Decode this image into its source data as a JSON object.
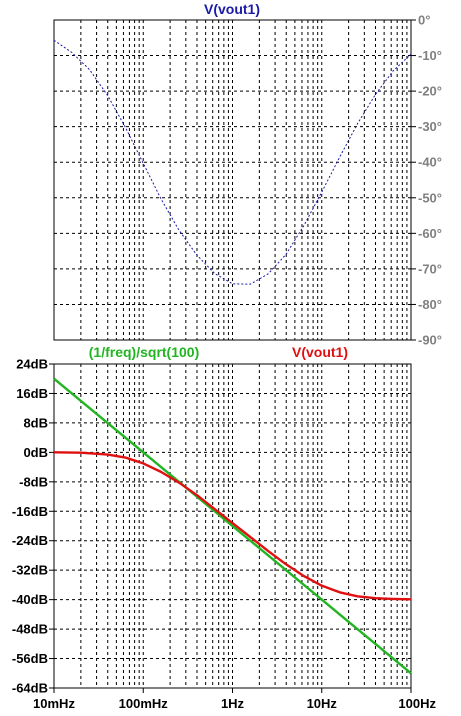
{
  "chart_data": [
    {
      "type": "line",
      "panel": "phase",
      "title": "V(vout1)",
      "title_color": "#1a1aa6",
      "x_scale": "log",
      "xlim": [
        0.01,
        100
      ],
      "ylim": [
        -90,
        0
      ],
      "y_ticks": [
        0,
        -10,
        -20,
        -30,
        -40,
        -50,
        -60,
        -70,
        -80,
        -90
      ],
      "y_tick_labels": [
        "0°",
        "-10°",
        "-20°",
        "-30°",
        "-40°",
        "-50°",
        "-60°",
        "-70°",
        "-80°",
        "-90°"
      ],
      "grid": true,
      "series": [
        {
          "name": "V(vout1)",
          "color": "#1a1aa6",
          "style": "dashed",
          "x": [
            0.01,
            0.0158,
            0.0251,
            0.0398,
            0.0631,
            0.1,
            0.158,
            0.251,
            0.398,
            0.631,
            1,
            1.585,
            2.512,
            3.981,
            6.31,
            10,
            15.85,
            25.12,
            39.81,
            63.1,
            100
          ],
          "y": [
            -5.7,
            -9.1,
            -14,
            -21.2,
            -30.2,
            -40.3,
            -50.3,
            -59.1,
            -66.1,
            -71.3,
            -74.2,
            -74.3,
            -71.4,
            -65.9,
            -57.8,
            -48.4,
            -38.6,
            -29.2,
            -21,
            -14.3,
            -9.6
          ]
        }
      ]
    },
    {
      "type": "line",
      "panel": "magnitude",
      "x_scale": "log",
      "xlim": [
        0.01,
        100
      ],
      "ylim": [
        -64,
        24
      ],
      "x_ticks": [
        0.01,
        0.1,
        1,
        10,
        100
      ],
      "x_tick_labels": [
        "10mHz",
        "100mHz",
        "1Hz",
        "10Hz",
        "100Hz"
      ],
      "y_ticks": [
        24,
        16,
        8,
        0,
        -8,
        -16,
        -24,
        -32,
        -40,
        -48,
        -56,
        -64
      ],
      "y_tick_labels": [
        "24dB",
        "16dB",
        "8dB",
        "0dB",
        "-8dB",
        "-16dB",
        "-24dB",
        "-32dB",
        "-40dB",
        "-48dB",
        "-56dB",
        "-64dB"
      ],
      "grid": true,
      "series": [
        {
          "name": "(1/freq)/sqrt(100)",
          "color": "#22b422",
          "x": [
            0.01,
            100
          ],
          "y": [
            20,
            -60
          ]
        },
        {
          "name": "V(vout1)",
          "color": "#e01010",
          "x": [
            0.01,
            0.02,
            0.04,
            0.063,
            0.1,
            0.158,
            0.251,
            0.398,
            0.631,
            1,
            1.585,
            2.512,
            3.981,
            6.31,
            10,
            15.85,
            25.12,
            39.81,
            63.1,
            100
          ],
          "y": [
            0,
            -0.1,
            -0.6,
            -1.4,
            -3,
            -5.3,
            -8.2,
            -11.6,
            -15.4,
            -19.2,
            -23,
            -26.8,
            -30.4,
            -33.6,
            -36.2,
            -38,
            -39.1,
            -39.6,
            -39.8,
            -39.9
          ]
        }
      ]
    }
  ]
}
